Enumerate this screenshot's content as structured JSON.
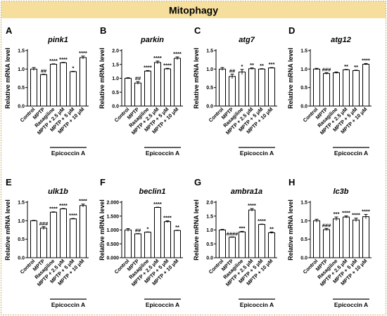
{
  "header": {
    "title": "Mitophagy"
  },
  "shared": {
    "categories": [
      "Control",
      "MPTP",
      "Rasagiline",
      "MPTP + 2.5 μM",
      "MPTP + 5 μM",
      "MPTP + 10 μM"
    ],
    "ylabel": "Relative mRNA level",
    "group_label": "Epicoccin A"
  },
  "chart_data": [
    {
      "type": "bar",
      "panel": "A",
      "title": "pink1",
      "ylabel": "Relative mRNA level",
      "ylim": [
        0,
        1.5
      ],
      "ticks": [
        "0.0",
        "0.5",
        "1.0",
        "1.5"
      ],
      "tick_values": [
        0,
        0.5,
        1.0,
        1.5
      ],
      "values": [
        1.0,
        0.85,
        1.13,
        1.17,
        0.93,
        1.31
      ],
      "errors": [
        0.04,
        0.01,
        0.01,
        0.01,
        0.01,
        0.04
      ],
      "annotations": [
        "",
        "##",
        "****",
        "****",
        "*",
        "****"
      ]
    },
    {
      "type": "bar",
      "panel": "B",
      "title": "parkin",
      "ylabel": "Relative mRNA level",
      "ylim": [
        0,
        2.0
      ],
      "ticks": [
        "0.0",
        "0.5",
        "1.0",
        "1.5",
        "2.0"
      ],
      "tick_values": [
        0,
        0.5,
        1.0,
        1.5,
        2.0
      ],
      "values": [
        1.0,
        0.83,
        1.26,
        1.57,
        1.34,
        1.72
      ],
      "errors": [
        0.02,
        0.05,
        0.02,
        0.05,
        0.02,
        0.05
      ],
      "annotations": [
        "",
        "##",
        "****",
        "****",
        "****",
        "****"
      ]
    },
    {
      "type": "bar",
      "panel": "C",
      "title": "atg7",
      "ylabel": "Relative mRNA level",
      "ylim": [
        0,
        1.5
      ],
      "ticks": [
        "0.0",
        "0.5",
        "1.0",
        "1.5"
      ],
      "tick_values": [
        0,
        0.5,
        1.0,
        1.5
      ],
      "values": [
        1.0,
        0.8,
        0.92,
        1.01,
        1.0,
        1.03
      ],
      "errors": [
        0.04,
        0.06,
        0.07,
        0.02,
        0.01,
        0.01
      ],
      "annotations": [
        "",
        "##",
        "*",
        "**",
        "**",
        "***"
      ]
    },
    {
      "type": "bar",
      "panel": "D",
      "title": "atg12",
      "ylabel": "Relative mRNA level",
      "ylim": [
        0,
        1.5
      ],
      "ticks": [
        "0.0",
        "0.5",
        "1.0",
        "1.5"
      ],
      "tick_values": [
        0,
        0.5,
        1.0,
        1.5
      ],
      "values": [
        1.0,
        0.88,
        0.9,
        0.98,
        0.96,
        1.13
      ],
      "errors": [
        0.02,
        0.02,
        0.02,
        0.01,
        0.01,
        0.02
      ],
      "annotations": [
        "",
        "###",
        "",
        "**",
        "**",
        "****"
      ]
    },
    {
      "type": "bar",
      "panel": "E",
      "title": "ulk1b",
      "ylabel": "Relative mRNA level",
      "ylim": [
        0,
        1.5
      ],
      "ticks": [
        "0.0",
        "0.5",
        "1.0",
        "1.5"
      ],
      "tick_values": [
        0,
        0.5,
        1.0,
        1.5
      ],
      "values": [
        1.0,
        0.8,
        1.23,
        1.32,
        1.05,
        1.41
      ],
      "errors": [
        0.01,
        0.04,
        0.01,
        0.01,
        0.01,
        0.04
      ],
      "annotations": [
        "",
        "###",
        "****",
        "****",
        "****",
        "****"
      ]
    },
    {
      "type": "bar",
      "panel": "F",
      "title": "beclin1",
      "ylabel": "Relative mRNA level",
      "ylim": [
        0,
        2.0
      ],
      "ticks": [
        "0.000",
        "0.500",
        "1.000",
        "1.500",
        "2.000"
      ],
      "tick_values": [
        0,
        0.5,
        1.0,
        1.5,
        2.0
      ],
      "values": [
        1.0,
        0.86,
        0.92,
        1.81,
        1.3,
        0.98
      ],
      "errors": [
        0.05,
        0.01,
        0.01,
        0.01,
        0.03,
        0.01
      ],
      "annotations": [
        "",
        "##",
        "*",
        "****",
        "****",
        "**"
      ]
    },
    {
      "type": "bar",
      "panel": "G",
      "title": "ambra1a",
      "ylabel": "Relative mRNA level",
      "ylim": [
        0,
        2.0
      ],
      "ticks": [
        "0.0",
        "0.5",
        "1.0",
        "1.5",
        "2.0"
      ],
      "tick_values": [
        0,
        0.5,
        1.0,
        1.5,
        2.0
      ],
      "values": [
        1.0,
        0.74,
        0.93,
        1.72,
        1.2,
        0.9
      ],
      "errors": [
        0.02,
        0.01,
        0.02,
        0.05,
        0.01,
        0.03
      ],
      "annotations": [
        "",
        "####",
        "***",
        "****",
        "****",
        "**"
      ]
    },
    {
      "type": "bar",
      "panel": "H",
      "title": "lc3b",
      "ylabel": "Relative mRNA level",
      "ylim": [
        0,
        1.5
      ],
      "ticks": [
        "0.0",
        "0.5",
        "1.0",
        "1.5"
      ],
      "tick_values": [
        0,
        0.5,
        1.0,
        1.5
      ],
      "values": [
        1.0,
        0.76,
        1.05,
        1.1,
        1.02,
        1.11
      ],
      "errors": [
        0.04,
        0.03,
        0.05,
        0.03,
        0.05,
        0.06
      ],
      "annotations": [
        "",
        "###",
        "***",
        "****",
        "****",
        "****"
      ]
    }
  ]
}
